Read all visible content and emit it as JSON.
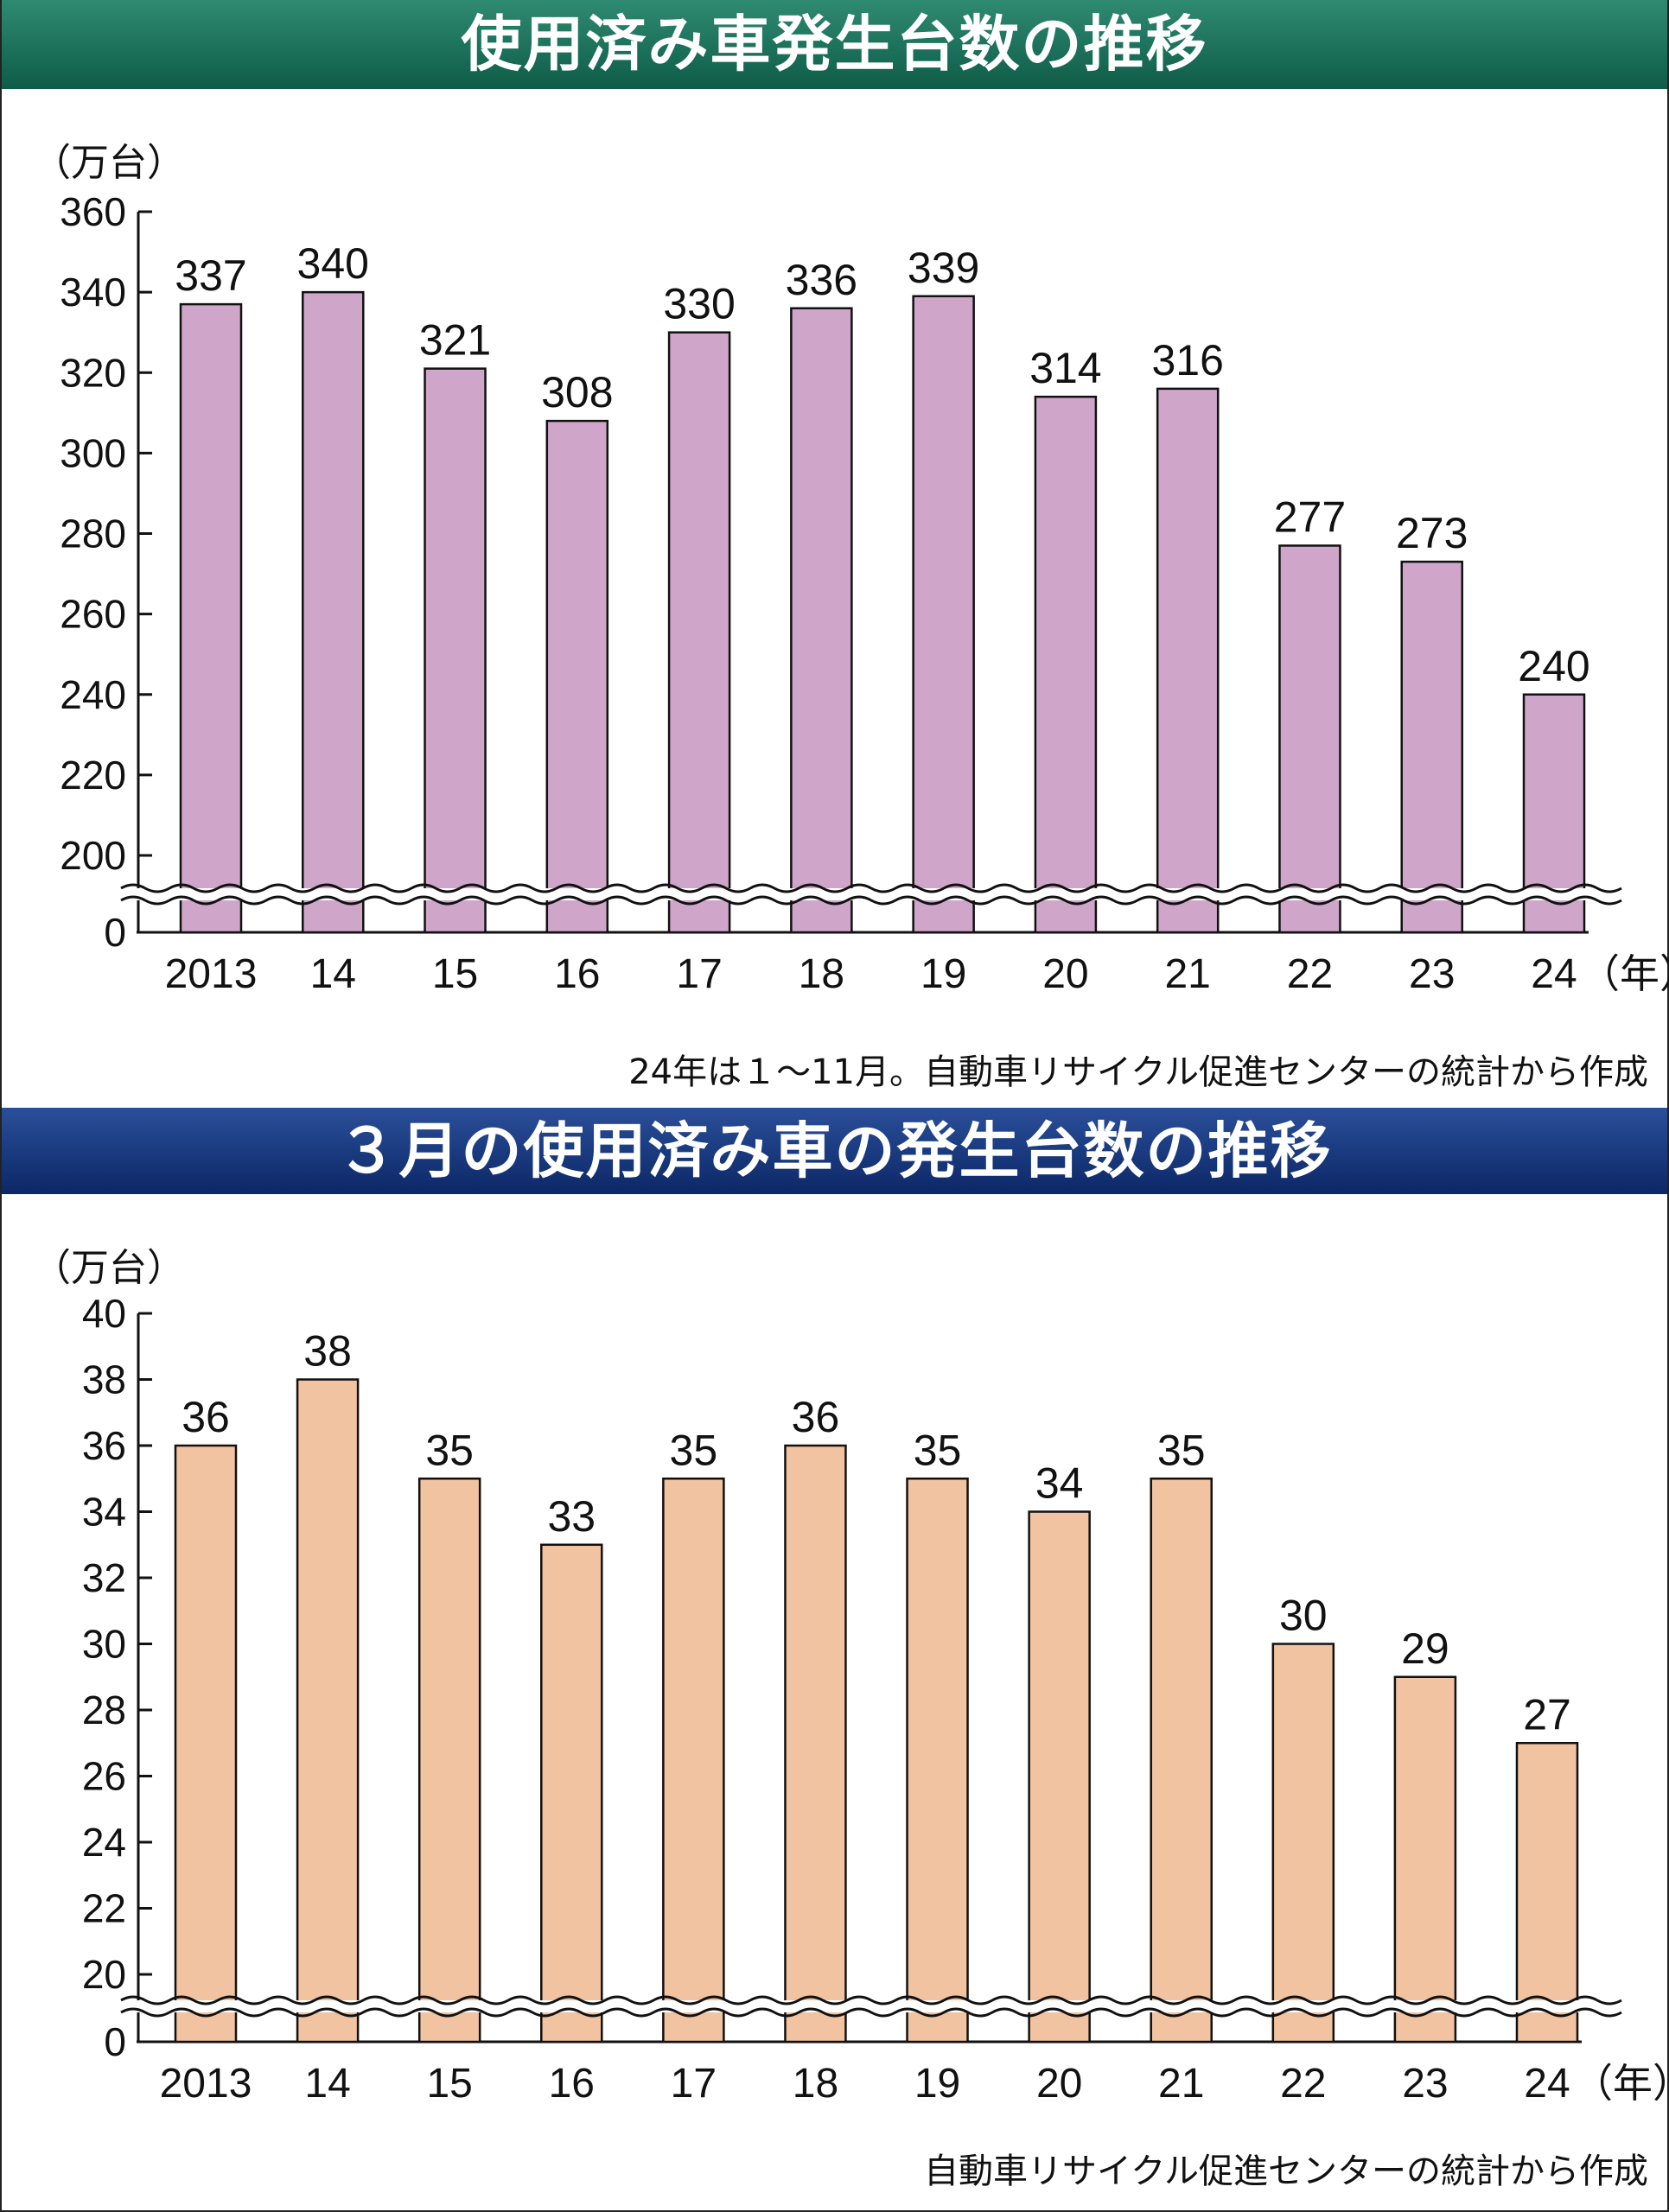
{
  "charts": [
    {
      "title": "使用済み車発生台数の推移",
      "unit": "（万台）",
      "note": "24年は１～11月。自動車リサイクル促進センターの統計から作成",
      "bar_color": "#cfa6c9"
    },
    {
      "title": "３月の使用済み車の発生台数の推移",
      "unit": "（万台）",
      "note": "自動車リサイクル促進センターの統計から作成",
      "bar_color": "#f2c3a0"
    }
  ],
  "chart_data": [
    {
      "type": "bar",
      "title": "使用済み車発生台数の推移",
      "ylabel": "（万台）",
      "xlabel": "",
      "categories": [
        "2013",
        "14",
        "15",
        "16",
        "17",
        "18",
        "19",
        "20",
        "21",
        "22",
        "23",
        "24"
      ],
      "x_unit_label": "（年）",
      "values": [
        337,
        340,
        321,
        308,
        330,
        336,
        339,
        314,
        316,
        277,
        273,
        240
      ],
      "yticks": [
        0,
        200,
        220,
        240,
        260,
        280,
        300,
        320,
        340,
        360
      ],
      "ylim": [
        200,
        360
      ],
      "axis_break": true,
      "grid": false
    },
    {
      "type": "bar",
      "title": "３月の使用済み車の発生台数の推移",
      "ylabel": "（万台）",
      "xlabel": "",
      "categories": [
        "2013",
        "14",
        "15",
        "16",
        "17",
        "18",
        "19",
        "20",
        "21",
        "22",
        "23",
        "24"
      ],
      "x_unit_label": "（年）",
      "values": [
        36,
        38,
        35,
        33,
        35,
        36,
        35,
        34,
        35,
        30,
        29,
        27
      ],
      "yticks": [
        0,
        20,
        22,
        24,
        26,
        28,
        30,
        32,
        34,
        36,
        38,
        40
      ],
      "ylim": [
        20,
        40
      ],
      "axis_break": true,
      "grid": false
    }
  ]
}
